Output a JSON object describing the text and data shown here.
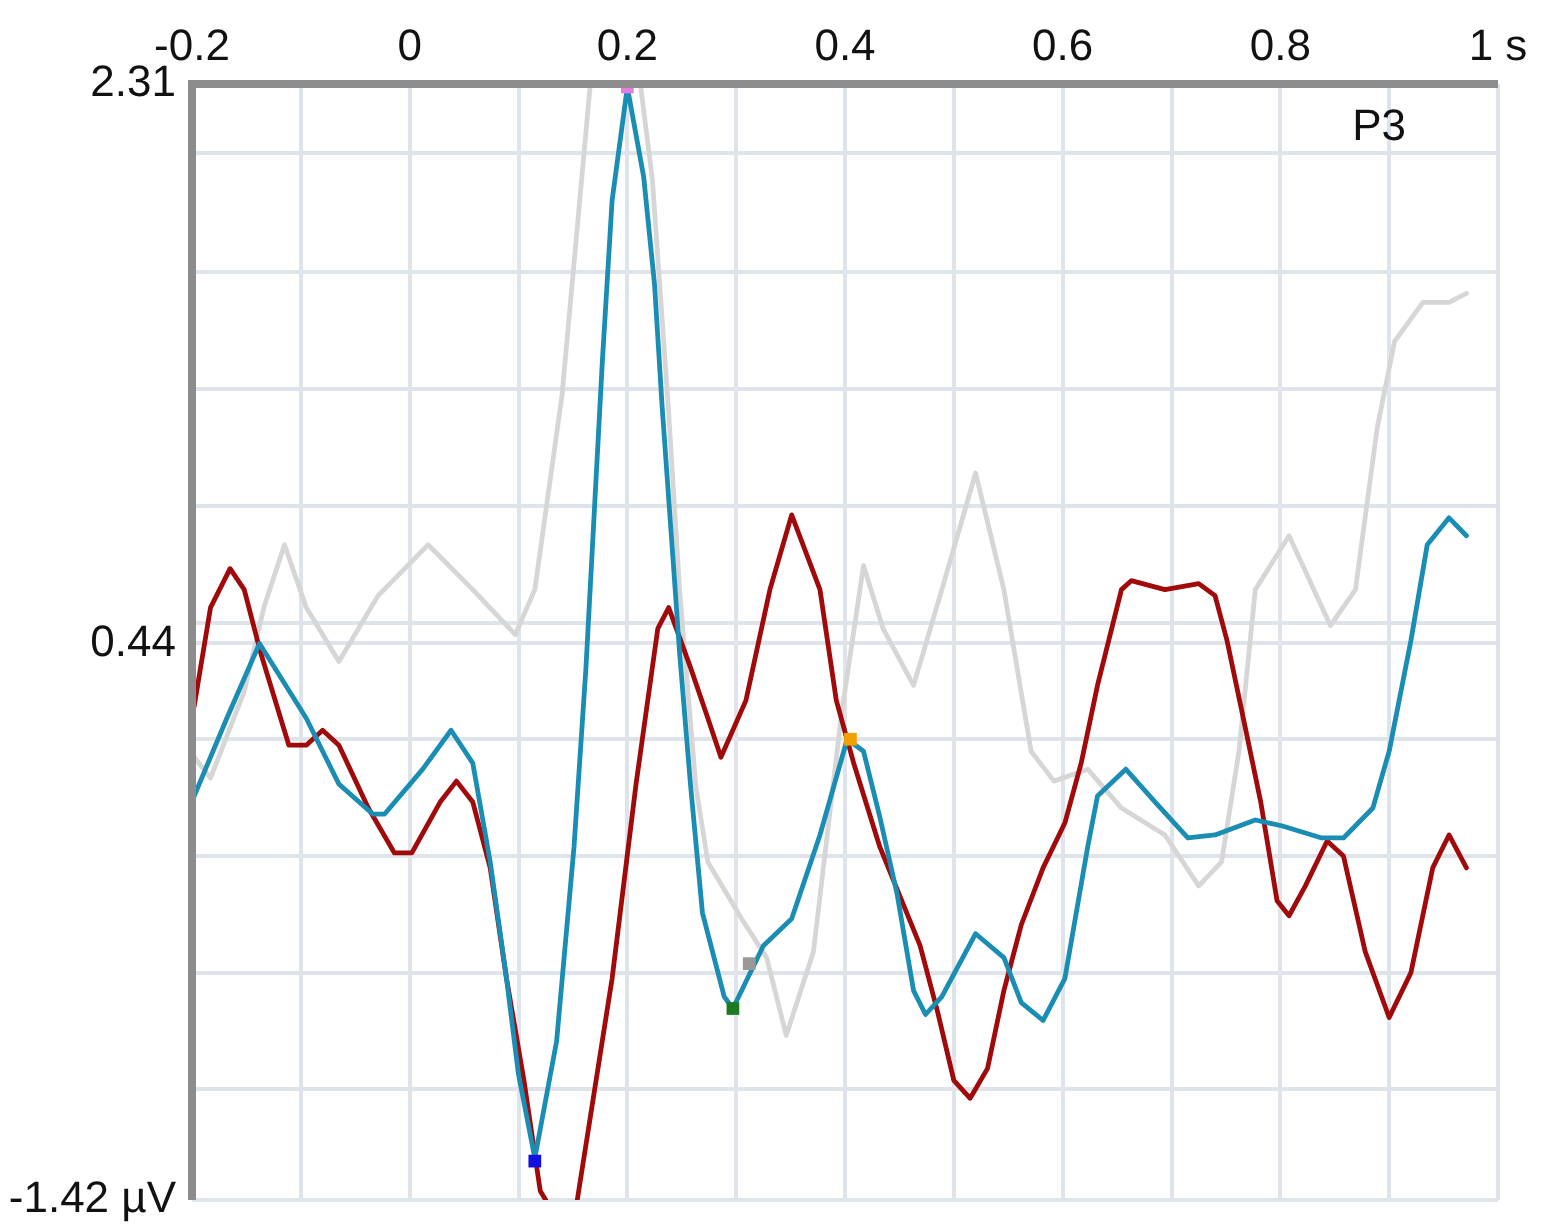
{
  "chart_data": {
    "type": "line",
    "xlim": [
      -0.2,
      1
    ],
    "ylim": [
      -1.42,
      2.31
    ],
    "xticks": [
      -0.2,
      {
        "value": -0.1,
        "label": null
      },
      0,
      {
        "value": 0.1,
        "label": null
      },
      0.2,
      {
        "value": 0.3,
        "label": null
      },
      0.4,
      {
        "value": 0.5,
        "label": null
      },
      0.6,
      {
        "value": 0.7,
        "label": null
      },
      0.8,
      {
        "value": 0.9,
        "label": null
      },
      {
        "value": 1,
        "label": "1 s"
      }
    ],
    "yticks": [
      {
        "value": -1.42,
        "label": "-1.42 µV"
      },
      {
        "value": -1.05,
        "label": null
      },
      {
        "value": -0.66,
        "label": null
      },
      {
        "value": -0.27,
        "label": null
      },
      {
        "value": 0.12,
        "label": null
      },
      0.44,
      {
        "value": 0.51,
        "label": null
      },
      {
        "value": 0.9,
        "label": null
      },
      {
        "value": 1.29,
        "label": null
      },
      {
        "value": 1.68,
        "label": null
      },
      {
        "value": 2.08,
        "label": null
      },
      2.31
    ],
    "grid": true,
    "legend": false,
    "marker": "none",
    "line_style": "solid",
    "annotations": [
      "P3"
    ],
    "series": [
      {
        "color": "#d6d6d6",
        "x": [
          -0.2,
          -0.183,
          -0.152,
          -0.134,
          -0.115,
          -0.095,
          -0.065,
          -0.029,
          0.017,
          0.058,
          0.097,
          0.115,
          0.14,
          0.166,
          0.19,
          0.212,
          0.223,
          0.238,
          0.248,
          0.263,
          0.274,
          0.305,
          0.328,
          0.346,
          0.371,
          0.397,
          0.417,
          0.435,
          0.463,
          0.489,
          0.52,
          0.546,
          0.571,
          0.592,
          0.623,
          0.654,
          0.694,
          0.725,
          0.746,
          0.762,
          0.777,
          0.808,
          0.846,
          0.869,
          0.889,
          0.905,
          0.931,
          0.955,
          0.971
        ],
        "values": [
          0.07,
          -0.01,
          0.28,
          0.56,
          0.77,
          0.56,
          0.38,
          0.6,
          0.77,
          0.62,
          0.47,
          0.62,
          1.27,
          2.31,
          null,
          2.31,
          1.99,
          1.21,
          0.62,
          -0.04,
          -0.29,
          -0.48,
          -0.61,
          -0.87,
          -0.59,
          0.21,
          0.7,
          0.49,
          0.3,
          0.62,
          1.01,
          0.62,
          0.08,
          -0.02,
          0.02,
          -0.11,
          -0.2,
          -0.37,
          -0.29,
          0.08,
          0.62,
          0.8,
          0.5,
          0.62,
          1.16,
          1.45,
          1.58,
          1.58,
          1.61
        ]
      },
      {
        "color": "#a00a0a",
        "x": [
          -0.198,
          -0.183,
          -0.165,
          -0.152,
          -0.137,
          -0.111,
          -0.095,
          -0.08,
          -0.065,
          -0.038,
          -0.014,
          0.002,
          0.028,
          0.043,
          0.058,
          0.074,
          0.089,
          0.105,
          0.12,
          0.125,
          0.14,
          0.154,
          0.186,
          0.208,
          0.228,
          0.238,
          0.258,
          0.274,
          0.286,
          0.309,
          0.331,
          0.351,
          0.377,
          0.392,
          0.408,
          0.432,
          0.469,
          0.485,
          0.5,
          0.515,
          0.531,
          0.546,
          0.562,
          0.582,
          0.602,
          0.617,
          0.632,
          0.654,
          0.663,
          0.694,
          0.725,
          0.74,
          0.751,
          0.766,
          0.782,
          0.797,
          0.808,
          0.823,
          0.843,
          0.858,
          0.878,
          0.9,
          0.92,
          0.94,
          0.955,
          0.971
        ],
        "values": [
          0.23,
          0.56,
          0.69,
          0.62,
          0.41,
          0.1,
          0.1,
          0.15,
          0.1,
          -0.11,
          -0.26,
          -0.26,
          -0.09,
          -0.02,
          -0.09,
          -0.31,
          -0.68,
          -1.02,
          -1.39,
          -1.42,
          null,
          -1.42,
          -0.68,
          -0.03,
          0.49,
          0.56,
          0.36,
          0.19,
          0.06,
          0.25,
          0.62,
          0.87,
          0.62,
          0.25,
          0.04,
          -0.24,
          -0.57,
          -0.79,
          -1.02,
          -1.08,
          -0.98,
          -0.72,
          -0.5,
          -0.31,
          -0.16,
          0.04,
          0.3,
          0.62,
          0.65,
          0.62,
          0.64,
          0.6,
          0.45,
          0.19,
          -0.09,
          -0.42,
          -0.47,
          -0.37,
          -0.22,
          -0.27,
          -0.59,
          -0.81,
          -0.66,
          -0.31,
          -0.2,
          -0.31
        ]
      },
      {
        "color": "#1a8db4",
        "x": [
          -0.198,
          -0.168,
          -0.138,
          -0.095,
          -0.065,
          -0.034,
          -0.023,
          0.012,
          0.038,
          0.058,
          0.074,
          0.089,
          0.1,
          0.115,
          0.135,
          0.151,
          0.162,
          0.177,
          0.186,
          0.2,
          0.215,
          0.225,
          0.232,
          0.243,
          0.248,
          0.258,
          0.269,
          0.289,
          0.297,
          0.325,
          0.351,
          0.377,
          0.402,
          0.417,
          0.432,
          0.448,
          0.463,
          0.474,
          0.489,
          0.52,
          0.546,
          0.562,
          0.582,
          0.602,
          0.623,
          0.632,
          0.658,
          0.685,
          0.715,
          0.74,
          0.777,
          0.802,
          0.838,
          0.858,
          0.885,
          0.9,
          0.92,
          0.935,
          0.955,
          0.971
        ],
        "values": [
          -0.07,
          0.19,
          0.44,
          0.19,
          -0.03,
          -0.13,
          -0.13,
          0.02,
          0.15,
          0.04,
          -0.29,
          -0.68,
          -1.0,
          -1.28,
          -0.89,
          -0.24,
          0.36,
          1.38,
          1.92,
          2.3,
          2.0,
          1.64,
          1.23,
          0.67,
          0.41,
          -0.03,
          -0.46,
          -0.74,
          -0.78,
          -0.57,
          -0.48,
          -0.2,
          0.12,
          0.08,
          -0.14,
          -0.4,
          -0.72,
          -0.8,
          -0.74,
          -0.53,
          -0.61,
          -0.76,
          -0.82,
          -0.68,
          -0.24,
          -0.07,
          0.02,
          -0.09,
          -0.21,
          -0.2,
          -0.15,
          -0.17,
          -0.21,
          -0.21,
          -0.11,
          0.08,
          0.45,
          0.77,
          0.86,
          0.8
        ]
      },
      {
        "type": "scatter",
        "marker": "square",
        "x": [
          0.2,
          0.115,
          0.297,
          0.312,
          0.405
        ],
        "values": [
          2.3,
          -1.29,
          -0.78,
          -0.63,
          0.12
        ],
        "colors": [
          "#e77be0",
          "#1010e0",
          "#1e7a1e",
          "#999999",
          "#f0a000"
        ]
      }
    ]
  }
}
